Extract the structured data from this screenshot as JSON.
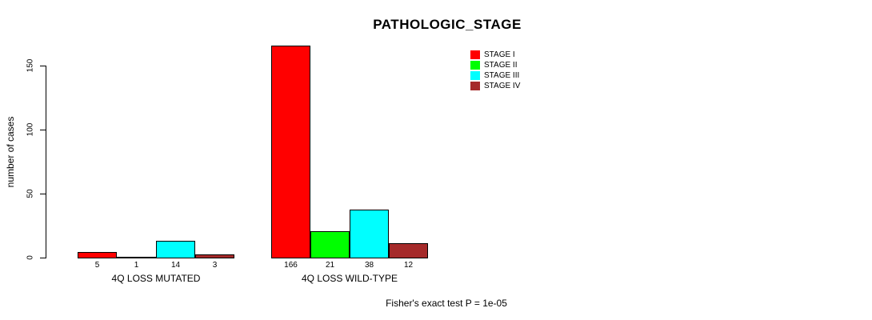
{
  "chart_data": {
    "type": "bar",
    "title": "PATHOLOGIC_STAGE",
    "ylabel": "number of cases",
    "xlabel": "",
    "yticks": [
      0,
      50,
      100,
      150
    ],
    "ylim": [
      0,
      170
    ],
    "grid": false,
    "legend_position": "top-right",
    "categories": [
      "4Q LOSS MUTATED",
      "4Q LOSS WILD-TYPE"
    ],
    "series": [
      {
        "name": "STAGE I",
        "color": "#ff0000",
        "values": [
          5,
          166
        ]
      },
      {
        "name": "STAGE II",
        "color": "#00ff00",
        "values": [
          1,
          21
        ]
      },
      {
        "name": "STAGE III",
        "color": "#00ffff",
        "values": [
          14,
          38
        ]
      },
      {
        "name": "STAGE IV",
        "color": "#a52a2a",
        "values": [
          3,
          12
        ]
      }
    ],
    "bar_value_labels": [
      [
        5,
        1,
        14,
        3
      ],
      [
        166,
        21,
        38,
        12
      ]
    ],
    "footnote": "Fisher's exact test P = 1e-05",
    "axis_color": "#000000",
    "background_color": "#ffffff"
  }
}
